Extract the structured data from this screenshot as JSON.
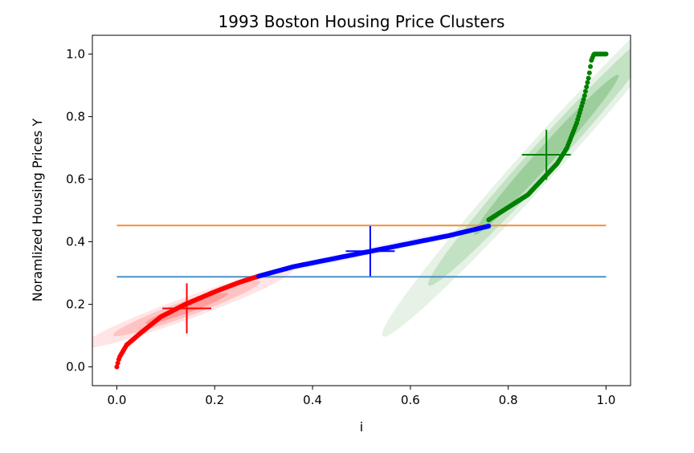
{
  "chart_data": {
    "type": "scatter",
    "title": "1993 Boston Housing Price Clusters",
    "xlabel": "i",
    "ylabel": "Noramlized Housing Prices Y",
    "xlim": [
      -0.05,
      1.05
    ],
    "ylim": [
      -0.06,
      1.06
    ],
    "xticks": [
      "0.0",
      "0.2",
      "0.4",
      "0.6",
      "0.8",
      "1.0"
    ],
    "yticks": [
      "0.0",
      "0.2",
      "0.4",
      "0.6",
      "0.8",
      "1.0"
    ],
    "grid": false,
    "thresholds": [
      {
        "y": 0.288,
        "x_range": [
          0.0,
          1.0
        ],
        "color": "#4c8fc4"
      },
      {
        "y": 0.452,
        "x_range": [
          0.0,
          1.0
        ],
        "color": "#f0913a"
      }
    ],
    "clusters": [
      {
        "color": "#ff0000",
        "curve": [
          [
            0.0,
            0.0
          ],
          [
            0.005,
            0.03
          ],
          [
            0.02,
            0.07
          ],
          [
            0.05,
            0.11
          ],
          [
            0.09,
            0.16
          ],
          [
            0.14,
            0.2
          ],
          [
            0.2,
            0.24
          ],
          [
            0.25,
            0.27
          ],
          [
            0.29,
            0.29
          ]
        ],
        "mean": [
          0.143,
          0.187
        ],
        "cross": {
          "dx": 0.05,
          "dy": 0.08
        },
        "ellipses": [
          {
            "rx": 0.23,
            "ry": 0.035,
            "angle_deg": 20,
            "opacity": 0.1
          },
          {
            "rx": 0.16,
            "ry": 0.025,
            "angle_deg": 20,
            "opacity": 0.15
          },
          {
            "rx": 0.09,
            "ry": 0.015,
            "angle_deg": 20,
            "opacity": 0.2
          }
        ]
      },
      {
        "color": "#0000ff",
        "curve": [
          [
            0.29,
            0.29
          ],
          [
            0.36,
            0.32
          ],
          [
            0.44,
            0.345
          ],
          [
            0.52,
            0.37
          ],
          [
            0.6,
            0.395
          ],
          [
            0.68,
            0.42
          ],
          [
            0.76,
            0.45
          ]
        ],
        "mean": [
          0.518,
          0.37
        ],
        "cross": {
          "dx": 0.05,
          "dy": 0.08
        },
        "ellipses": [
          {
            "rx": 0.25,
            "ry": 0.012,
            "angle_deg": 12,
            "opacity": 0.06
          }
        ]
      },
      {
        "color": "#008000",
        "curve": [
          [
            0.76,
            0.47
          ],
          [
            0.8,
            0.51
          ],
          [
            0.84,
            0.55
          ],
          [
            0.87,
            0.6
          ],
          [
            0.9,
            0.65
          ],
          [
            0.92,
            0.7
          ],
          [
            0.94,
            0.78
          ],
          [
            0.955,
            0.86
          ],
          [
            0.965,
            0.93
          ],
          [
            0.97,
            0.98
          ],
          [
            0.975,
            1.0
          ],
          [
            1.0,
            1.0
          ]
        ],
        "mean": [
          0.878,
          0.678
        ],
        "cross": {
          "dx": 0.05,
          "dy": 0.08
        },
        "ellipses": [
          {
            "rx": 0.5,
            "ry": 0.06,
            "angle_deg": 48,
            "opacity": 0.1
          },
          {
            "rx": 0.36,
            "ry": 0.045,
            "angle_deg": 48,
            "opacity": 0.15
          },
          {
            "rx": 0.22,
            "ry": 0.028,
            "angle_deg": 48,
            "opacity": 0.2
          }
        ]
      }
    ]
  }
}
